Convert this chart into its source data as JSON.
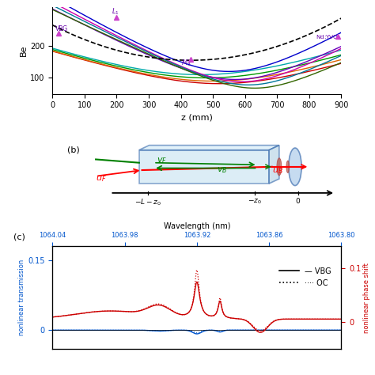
{
  "panel_a": {
    "ylim": [
      50,
      320
    ],
    "yticks": [
      100,
      200
    ],
    "xlabel": "z (mm)",
    "ylabel": "Be",
    "xticks": [
      0,
      100,
      200,
      300,
      400,
      500,
      600,
      700,
      800,
      900
    ],
    "curve_colors": [
      "#cc0000",
      "#e07000",
      "#008800",
      "#00aaaa",
      "#0000dd",
      "#6600bb",
      "#cc00aa",
      "#009999",
      "#336600"
    ],
    "marker_color": "#cc44cc",
    "annotation_color": "#6600aa"
  },
  "panel_c": {
    "wavelength_labels": [
      "1064.04",
      "1063.98",
      "1063.92",
      "1063.86",
      "1063.80"
    ],
    "xlabel_top": "Wavelength (nm)",
    "ylabel_left": "nonlinear transmission",
    "ylabel_right": "nonlinear phase shift",
    "blue_color": "#0055cc",
    "red_color": "#cc0000",
    "ytick_left_vals": [
      0,
      0.15
    ],
    "ytick_left_labels": [
      "0",
      "0.15"
    ],
    "ytick_right_vals": [
      0,
      0.1
    ],
    "ytick_right_labels": [
      "0",
      "0.1"
    ]
  }
}
